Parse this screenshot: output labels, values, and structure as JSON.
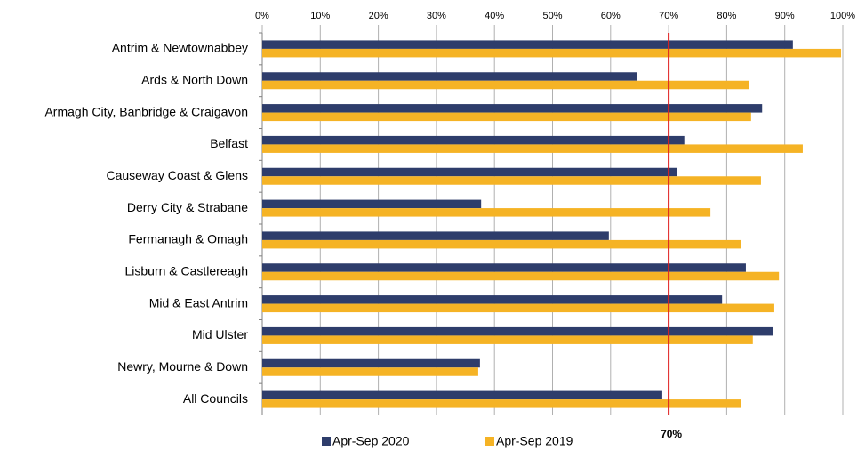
{
  "chart_data": {
    "type": "hbar",
    "categories": [
      "Antrim & Newtownabbey",
      "Ards & North Down",
      "Armagh City, Banbridge & Craigavon",
      "Belfast",
      "Causeway Coast & Glens",
      "Derry City & Strabane",
      "Fermanagh & Omagh",
      "Lisburn & Castlereagh",
      "Mid & East Antrim",
      "Mid Ulster",
      "Newry, Mourne & Down",
      "All Councils"
    ],
    "series": [
      {
        "name": "Apr-Sep 2020",
        "color": "#2e3d6b",
        "values": [
          91.4,
          64.5,
          86.1,
          72.7,
          71.5,
          37.7,
          59.7,
          83.3,
          79.2,
          87.9,
          37.5,
          68.9
        ]
      },
      {
        "name": "Apr-Sep 2019",
        "color": "#f5b325",
        "values": [
          99.7,
          83.9,
          84.2,
          93.1,
          85.9,
          77.2,
          82.5,
          89.0,
          88.2,
          84.5,
          37.2,
          82.5
        ]
      }
    ],
    "xlim": [
      0,
      100
    ],
    "xticks": [
      {
        "value": 0,
        "label": "0%"
      },
      {
        "value": 10,
        "label": "10%"
      },
      {
        "value": 20,
        "label": "20%"
      },
      {
        "value": 30,
        "label": "30%"
      },
      {
        "value": 40,
        "label": "40%"
      },
      {
        "value": 50,
        "label": "50%"
      },
      {
        "value": 60,
        "label": "60%"
      },
      {
        "value": 70,
        "label": "70%"
      },
      {
        "value": 80,
        "label": "80%"
      },
      {
        "value": 90,
        "label": "90%"
      },
      {
        "value": 100,
        "label": "100%"
      }
    ],
    "grid": true,
    "reference_line": {
      "value": 70,
      "label": "70%",
      "color": "#e02020"
    },
    "legend": "bottom"
  }
}
